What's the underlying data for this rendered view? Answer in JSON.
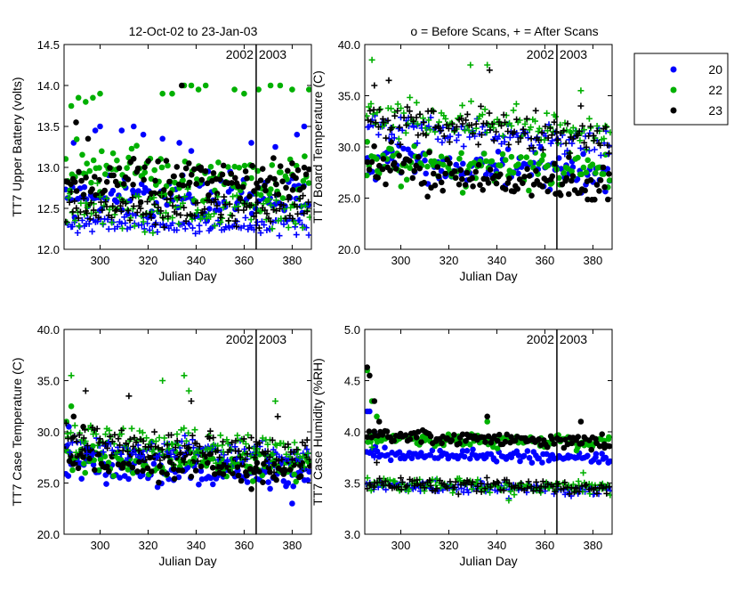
{
  "header": {
    "left_title": "12-Oct-02 to 23-Jan-03",
    "right_title": "o = Before Scans, + = After Scans"
  },
  "legend": {
    "items": [
      {
        "label": "20",
        "color": "#0000ff"
      },
      {
        "label": "22",
        "color": "#00b000"
      },
      {
        "label": "23",
        "color": "#000000"
      }
    ]
  },
  "year_labels": {
    "left": "2002",
    "right": "2003"
  },
  "chart_data": [
    {
      "type": "scatter",
      "id": "battery",
      "xlabel": "Julian Day",
      "ylabel": "TT7 Upper Battery (volts)",
      "xlim": [
        285,
        388
      ],
      "ylim": [
        12.0,
        14.5
      ],
      "xticks": [
        300,
        320,
        340,
        360,
        380
      ],
      "yticks": [
        "12.0",
        "12.5",
        "13.0",
        "13.5",
        "14.0",
        "14.5"
      ],
      "divider_x": 365,
      "series": [
        {
          "name": "20",
          "marker": "o",
          "color": "#0000ff",
          "center": 12.65,
          "spread": 0.28,
          "trend": 0,
          "spikes": [
            [
              289,
              13.3
            ],
            [
              298,
              13.45
            ],
            [
              300,
              13.5
            ],
            [
              309,
              13.45
            ],
            [
              314,
              13.5
            ],
            [
              318,
              13.4
            ],
            [
              326,
              13.35
            ],
            [
              333,
              13.3
            ],
            [
              338,
              13.2
            ],
            [
              345,
              12.95
            ],
            [
              363,
              13.3
            ],
            [
              373,
              13.25
            ],
            [
              382,
              13.4
            ],
            [
              385,
              13.5
            ]
          ]
        },
        {
          "name": "22",
          "marker": "o",
          "color": "#00b000",
          "center": 12.95,
          "spread": 0.35,
          "trend": -0.1,
          "spikes": [
            [
              288,
              13.75
            ],
            [
              291,
              13.85
            ],
            [
              294,
              13.8
            ],
            [
              297,
              13.85
            ],
            [
              300,
              13.9
            ],
            [
              326,
              13.9
            ],
            [
              330,
              13.9
            ],
            [
              335,
              14.0
            ],
            [
              338,
              14.0
            ],
            [
              341,
              13.95
            ],
            [
              344,
              14.0
            ],
            [
              356,
              13.95
            ],
            [
              360,
              13.9
            ],
            [
              366,
              13.95
            ],
            [
              371,
              14.0
            ],
            [
              375,
              14.0
            ],
            [
              380,
              13.95
            ],
            [
              387,
              13.95
            ]
          ]
        },
        {
          "name": "23",
          "marker": "o",
          "color": "#000000",
          "center": 12.8,
          "spread": 0.25,
          "trend": 0.05,
          "spikes": [
            [
              290,
              13.55
            ],
            [
              295,
              13.35
            ],
            [
              334,
              14.0
            ],
            [
              337,
              13.05
            ],
            [
              342,
              13.0
            ],
            [
              380,
              13.05
            ]
          ]
        },
        {
          "name": "20",
          "marker": "+",
          "color": "#0000ff",
          "center": 12.32,
          "spread": 0.12,
          "trend": -0.05,
          "spikes": []
        },
        {
          "name": "22",
          "marker": "+",
          "color": "#00b000",
          "center": 12.5,
          "spread": 0.25,
          "trend": -0.05,
          "spikes": [
            [
              322,
              12.2
            ]
          ]
        },
        {
          "name": "23",
          "marker": "+",
          "color": "#000000",
          "center": 12.48,
          "spread": 0.2,
          "trend": 0,
          "spikes": []
        }
      ]
    },
    {
      "type": "scatter",
      "id": "board",
      "xlabel": "Julian Day",
      "ylabel": "TT7 Board Temperature (C)",
      "xlim": [
        285,
        388
      ],
      "ylim": [
        20.0,
        40.0
      ],
      "xticks": [
        300,
        320,
        340,
        360,
        380
      ],
      "yticks": [
        "20.0",
        "25.0",
        "30.0",
        "35.0",
        "40.0"
      ],
      "divider_x": 365,
      "series": [
        {
          "name": "20",
          "marker": "o",
          "color": "#0000ff",
          "center": 28.6,
          "spread": 2.0,
          "trend": -1.5,
          "spikes": []
        },
        {
          "name": "22",
          "marker": "o",
          "color": "#00b000",
          "center": 28.4,
          "spread": 2.2,
          "trend": -1.0,
          "spikes": [
            [
              286,
              30.5
            ]
          ]
        },
        {
          "name": "23",
          "marker": "o",
          "color": "#000000",
          "center": 28.0,
          "spread": 2.0,
          "trend": -2.0,
          "spikes": [
            [
              296,
              30.5
            ],
            [
              370,
              29.0
            ]
          ]
        },
        {
          "name": "20",
          "marker": "+",
          "color": "#0000ff",
          "center": 32.0,
          "spread": 1.5,
          "trend": -1.5,
          "spikes": []
        },
        {
          "name": "22",
          "marker": "+",
          "color": "#00b000",
          "center": 33.0,
          "spread": 1.8,
          "trend": -1.5,
          "spikes": [
            [
              288,
              38.5
            ],
            [
              329,
              38.0
            ],
            [
              336,
              38.0
            ],
            [
              375,
              35.5
            ]
          ]
        },
        {
          "name": "23",
          "marker": "+",
          "color": "#000000",
          "center": 32.8,
          "spread": 2.0,
          "trend": -2.0,
          "spikes": [
            [
              289,
              36.0
            ],
            [
              295,
              36.5
            ],
            [
              337,
              37.5
            ],
            [
              375,
              34.0
            ]
          ]
        }
      ]
    },
    {
      "type": "scatter",
      "id": "case_temp",
      "xlabel": "Julian Day",
      "ylabel": "TT7 Case Temperature (C)",
      "xlim": [
        285,
        388
      ],
      "ylim": [
        20.0,
        40.0
      ],
      "xticks": [
        300,
        320,
        340,
        360,
        380
      ],
      "yticks": [
        "20.0",
        "25.0",
        "30.0",
        "35.0",
        "40.0"
      ],
      "divider_x": 365,
      "series": [
        {
          "name": "20",
          "marker": "o",
          "color": "#0000ff",
          "center": 26.6,
          "spread": 1.4,
          "trend": -1.0,
          "spikes": [
            [
              287,
              30.5
            ],
            [
              380,
              23.0
            ]
          ]
        },
        {
          "name": "22",
          "marker": "o",
          "color": "#00b000",
          "center": 27.6,
          "spread": 1.6,
          "trend": -1.0,
          "spikes": [
            [
              286,
              31.0
            ],
            [
              288,
              32.5
            ]
          ]
        },
        {
          "name": "23",
          "marker": "o",
          "color": "#000000",
          "center": 27.5,
          "spread": 1.7,
          "trend": -1.5,
          "spikes": [
            [
              289,
              31.5
            ],
            [
              293,
              30.5
            ]
          ]
        },
        {
          "name": "20",
          "marker": "+",
          "color": "#0000ff",
          "center": 28.6,
          "spread": 1.2,
          "trend": -0.8,
          "spikes": []
        },
        {
          "name": "22",
          "marker": "+",
          "color": "#00b000",
          "center": 29.5,
          "spread": 1.8,
          "trend": -1.5,
          "spikes": [
            [
              288,
              35.5
            ],
            [
              326,
              35.0
            ],
            [
              335,
              35.5
            ],
            [
              337,
              34.0
            ],
            [
              373,
              33.0
            ]
          ]
        },
        {
          "name": "23",
          "marker": "+",
          "color": "#000000",
          "center": 29.3,
          "spread": 1.8,
          "trend": -1.5,
          "spikes": [
            [
              294,
              34.0
            ],
            [
              312,
              33.5
            ],
            [
              338,
              33.0
            ],
            [
              374,
              31.5
            ]
          ]
        }
      ]
    },
    {
      "type": "scatter",
      "id": "humidity",
      "xlabel": "Julian Day",
      "ylabel": "TT7 Case Humidity (%RH)",
      "xlim": [
        285,
        388
      ],
      "ylim": [
        3.0,
        5.0
      ],
      "xticks": [
        300,
        320,
        340,
        360,
        380
      ],
      "yticks": [
        "3.0",
        "3.5",
        "4.0",
        "4.5",
        "5.0"
      ],
      "divider_x": 365,
      "series": [
        {
          "name": "20",
          "marker": "o",
          "color": "#0000ff",
          "center": 3.79,
          "spread": 0.06,
          "trend": -0.05,
          "spikes": [
            [
              286,
              4.2
            ],
            [
              287,
              4.2
            ],
            [
              289,
              4.0
            ],
            [
              292,
              3.95
            ]
          ]
        },
        {
          "name": "22",
          "marker": "o",
          "color": "#00b000",
          "center": 3.94,
          "spread": 0.07,
          "trend": -0.05,
          "spikes": [
            [
              286,
              4.6
            ],
            [
              288,
              4.3
            ],
            [
              290,
              4.15
            ],
            [
              336,
              4.1
            ]
          ]
        },
        {
          "name": "23",
          "marker": "o",
          "color": "#000000",
          "center": 3.95,
          "spread": 0.07,
          "trend": -0.05,
          "spikes": [
            [
              286,
              4.63
            ],
            [
              287,
              4.55
            ],
            [
              289,
              4.3
            ],
            [
              291,
              4.1
            ],
            [
              336,
              4.15
            ],
            [
              375,
              4.1
            ]
          ]
        },
        {
          "name": "20",
          "marker": "+",
          "color": "#0000ff",
          "center": 3.48,
          "spread": 0.07,
          "trend": -0.05,
          "spikes": [
            [
              289,
              3.75
            ],
            [
              345,
              3.35
            ]
          ]
        },
        {
          "name": "22",
          "marker": "+",
          "color": "#00b000",
          "center": 3.5,
          "spread": 0.07,
          "trend": -0.05,
          "spikes": [
            [
              288,
              3.85
            ],
            [
              345,
              3.33
            ],
            [
              376,
              3.6
            ]
          ]
        },
        {
          "name": "23",
          "marker": "+",
          "color": "#000000",
          "center": 3.5,
          "spread": 0.07,
          "trend": -0.05,
          "spikes": [
            [
              290,
              3.7
            ],
            [
              300,
              3.55
            ]
          ]
        }
      ]
    }
  ]
}
